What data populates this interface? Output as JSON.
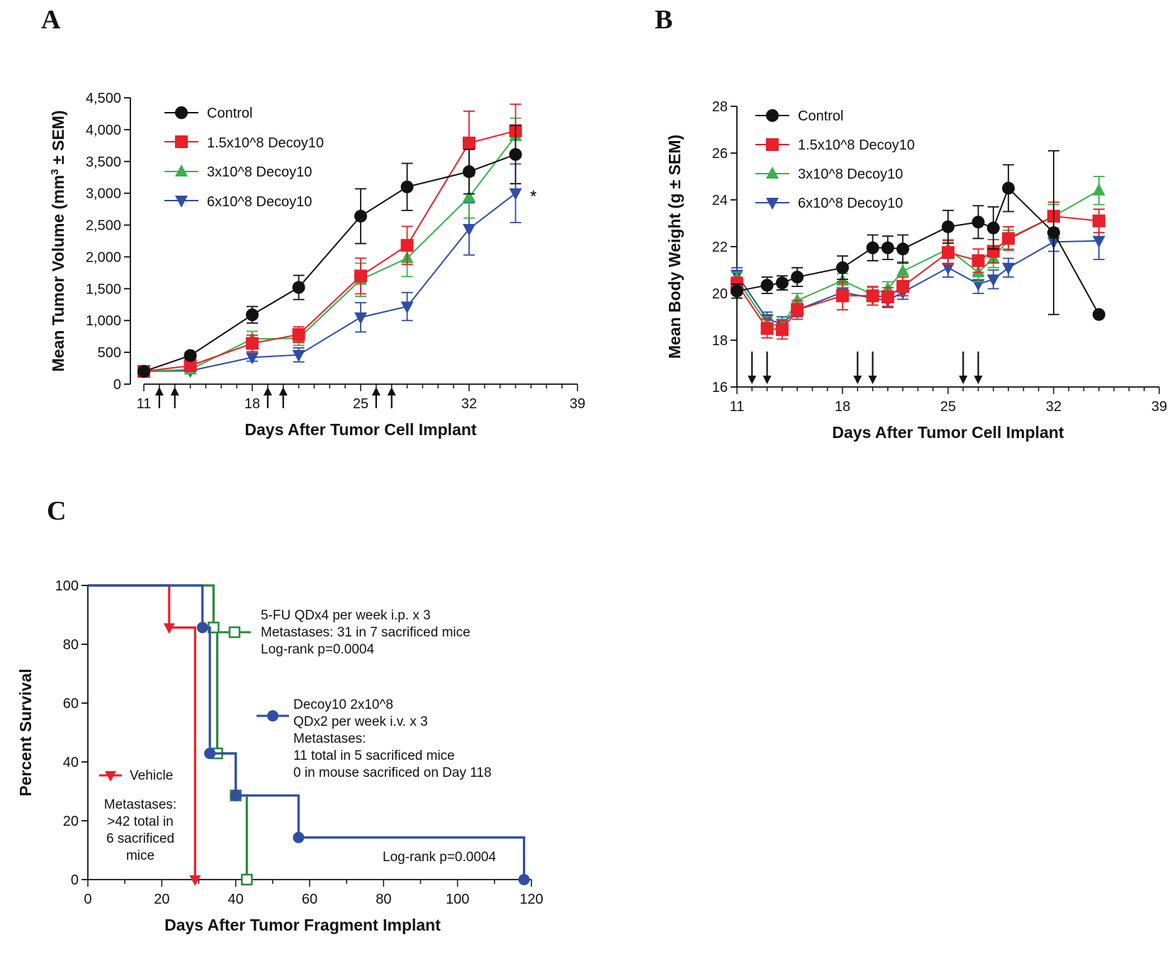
{
  "colors": {
    "control": "#111111",
    "dose1": "#e8202a",
    "dose2": "#39b24a",
    "dose3": "#2f4ea3",
    "green_dark": "#2a8a3a",
    "blue_km": "#2f4ea3"
  },
  "chart_data": [
    {
      "panel": "A",
      "type": "line",
      "xlabel": "Days After Tumor Cell Implant",
      "ylabel_pre": "Mean Tumor Volume (mm",
      "ylabel_sup": "3",
      "ylabel_post": " ± SEM)",
      "xlim": [
        11,
        39
      ],
      "ylim": [
        0,
        4500
      ],
      "xticks": [
        11,
        18,
        25,
        32,
        39
      ],
      "yticks": [
        0,
        500,
        1000,
        1500,
        2000,
        2500,
        3000,
        3500,
        4000,
        4500
      ],
      "ytick_labels": [
        "0",
        "500",
        "1,000",
        "1,500",
        "2,000",
        "2,500",
        "3,000",
        "3,500",
        "4,000",
        "4,500"
      ],
      "dosing_days": [
        12,
        13,
        19,
        20,
        26,
        27
      ],
      "annotation": "*",
      "series": [
        {
          "name": "Control",
          "marker": "circle",
          "x": [
            11,
            14,
            18,
            21,
            25,
            28,
            32,
            35
          ],
          "y": [
            200,
            450,
            1090,
            1520,
            2640,
            3100,
            3340,
            3610
          ],
          "err": [
            40,
            50,
            130,
            190,
            430,
            370,
            350,
            460
          ]
        },
        {
          "name": "1.5x10^8 Decoy10",
          "marker": "square",
          "x": [
            11,
            14,
            18,
            21,
            25,
            28,
            32,
            35
          ],
          "y": [
            200,
            290,
            640,
            780,
            1700,
            2180,
            3790,
            3980
          ],
          "err": [
            30,
            50,
            130,
            120,
            280,
            300,
            500,
            420
          ]
        },
        {
          "name": "3x10^8 Decoy10",
          "marker": "triangle-up",
          "x": [
            11,
            14,
            18,
            21,
            25,
            28,
            32,
            35
          ],
          "y": [
            200,
            230,
            710,
            720,
            1640,
            1980,
            2940,
            3900
          ],
          "err": [
            30,
            40,
            120,
            110,
            260,
            290,
            330,
            280
          ]
        },
        {
          "name": "6x10^8 Decoy10",
          "marker": "triangle-down",
          "x": [
            11,
            14,
            18,
            21,
            25,
            28,
            32,
            35
          ],
          "y": [
            200,
            210,
            420,
            460,
            1050,
            1220,
            2440,
            3000
          ],
          "err": [
            30,
            40,
            60,
            110,
            230,
            220,
            410,
            460
          ]
        }
      ]
    },
    {
      "panel": "B",
      "type": "line",
      "xlabel": "Days After Tumor Cell Implant",
      "ylabel": "Mean Body Weight (g ± SEM)",
      "xlim": [
        11,
        39
      ],
      "ylim": [
        16,
        28
      ],
      "xticks": [
        11,
        18,
        25,
        32,
        39
      ],
      "yticks": [
        16,
        18,
        20,
        22,
        24,
        26,
        28
      ],
      "ytick_labels": [
        "16",
        "18",
        "20",
        "22",
        "24",
        "26",
        "28"
      ],
      "dosing_days": [
        12,
        13,
        19,
        20,
        26,
        27
      ],
      "series": [
        {
          "name": "Control",
          "marker": "circle",
          "x": [
            11,
            13,
            14,
            15,
            18,
            20,
            21,
            22,
            25,
            27,
            28,
            29,
            32,
            35
          ],
          "y": [
            20.1,
            20.35,
            20.45,
            20.7,
            21.1,
            21.95,
            21.95,
            21.9,
            22.85,
            23.05,
            22.8,
            24.5,
            22.6,
            19.1
          ],
          "err": [
            0.3,
            0.35,
            0.3,
            0.4,
            0.5,
            0.55,
            0.5,
            0.6,
            0.7,
            0.7,
            0.9,
            1.0,
            3.5,
            0
          ]
        },
        {
          "name": "1.5x10^8 Decoy10",
          "marker": "square",
          "x": [
            11,
            13,
            14,
            15,
            18,
            20,
            21,
            22,
            25,
            27,
            28,
            29,
            32,
            35
          ],
          "y": [
            20.4,
            18.5,
            18.45,
            19.3,
            19.9,
            19.9,
            19.85,
            20.3,
            21.75,
            21.4,
            21.8,
            22.35,
            23.3,
            23.1
          ],
          "err": [
            0.3,
            0.4,
            0.4,
            0.4,
            0.6,
            0.4,
            0.4,
            0.4,
            0.5,
            0.5,
            0.5,
            0.5,
            0.6,
            0.5
          ]
        },
        {
          "name": "3x10^8 Decoy10",
          "marker": "triangle-up",
          "x": [
            11,
            13,
            14,
            15,
            18,
            20,
            21,
            22,
            25,
            27,
            28,
            29,
            32,
            35
          ],
          "y": [
            20.6,
            18.7,
            18.6,
            19.7,
            20.55,
            19.95,
            20.2,
            20.95,
            21.9,
            20.9,
            21.5,
            22.3,
            23.3,
            24.4
          ],
          "err": [
            0.3,
            0.3,
            0.3,
            0.3,
            0.3,
            0.3,
            0.3,
            0.4,
            0.4,
            0.4,
            0.4,
            0.4,
            0.5,
            0.6
          ]
        },
        {
          "name": "6x10^8 Decoy10",
          "marker": "triangle-down",
          "x": [
            11,
            13,
            14,
            15,
            18,
            20,
            21,
            22,
            25,
            27,
            28,
            29,
            32,
            35
          ],
          "y": [
            20.8,
            18.9,
            18.7,
            19.3,
            20.05,
            19.8,
            19.7,
            20.05,
            21.1,
            20.4,
            20.6,
            21.1,
            22.2,
            22.25
          ],
          "err": [
            0.3,
            0.3,
            0.3,
            0.3,
            0.4,
            0.3,
            0.3,
            0.3,
            0.4,
            0.4,
            0.4,
            0.4,
            0.4,
            0.8
          ]
        }
      ]
    },
    {
      "panel": "C",
      "type": "survival",
      "xlabel": "Days After Tumor Fragment Implant",
      "ylabel": "Percent Survival",
      "xlim": [
        0,
        120
      ],
      "ylim": [
        0,
        100
      ],
      "xticks": [
        0,
        20,
        40,
        60,
        80,
        100,
        120
      ],
      "yticks": [
        0,
        20,
        40,
        60,
        80,
        100
      ],
      "series": [
        {
          "name": "Vehicle",
          "marker": "triangle-down",
          "steps": [
            [
              0,
              100
            ],
            [
              22,
              85.7
            ],
            [
              29,
              0
            ]
          ],
          "events_x": [
            22,
            29
          ],
          "events_y": [
            85.7,
            0
          ]
        },
        {
          "name": "5-FU",
          "marker": "open-square",
          "steps": [
            [
              0,
              100
            ],
            [
              34,
              85.7
            ],
            [
              35,
              42.9
            ],
            [
              40,
              28.6
            ],
            [
              43,
              0
            ]
          ],
          "events_x": [
            34,
            35,
            40,
            43
          ],
          "events_y": [
            85.7,
            42.9,
            28.6,
            0
          ]
        },
        {
          "name": "Decoy10",
          "marker": "circle",
          "steps": [
            [
              0,
              100
            ],
            [
              31,
              85.7
            ],
            [
              33,
              42.9
            ],
            [
              40,
              28.6
            ],
            [
              57,
              14.3
            ],
            [
              118,
              0
            ]
          ],
          "events_x": [
            31,
            33,
            40,
            57,
            118
          ],
          "events_y": [
            85.7,
            42.9,
            28.6,
            14.3,
            0
          ]
        }
      ]
    }
  ],
  "panels": {
    "A": "A",
    "B": "B",
    "C": "C"
  },
  "legend_ab": [
    "Control",
    "1.5x10^8 Decoy10",
    "3x10^8 Decoy10",
    "6x10^8 Decoy10"
  ],
  "annotations_c": {
    "fu_lines": [
      "5-FU QDx4 per week i.p. x 3",
      "Metastases: 31 in 7 sacrificed mice",
      "Log-rank p=0.0004"
    ],
    "decoy_lines": [
      "Decoy10 2x10^8",
      "QDx2 per week i.v. x 3",
      "Metastases:",
      "11 total in 5 sacrificed mice",
      "0 in mouse sacrificed on Day 118"
    ],
    "vehicle_label": "Vehicle",
    "vehicle_lines": [
      "Metastases:",
      ">42 total in",
      "6 sacrificed",
      "mice"
    ],
    "logrank": "Log-rank p=0.0004"
  }
}
